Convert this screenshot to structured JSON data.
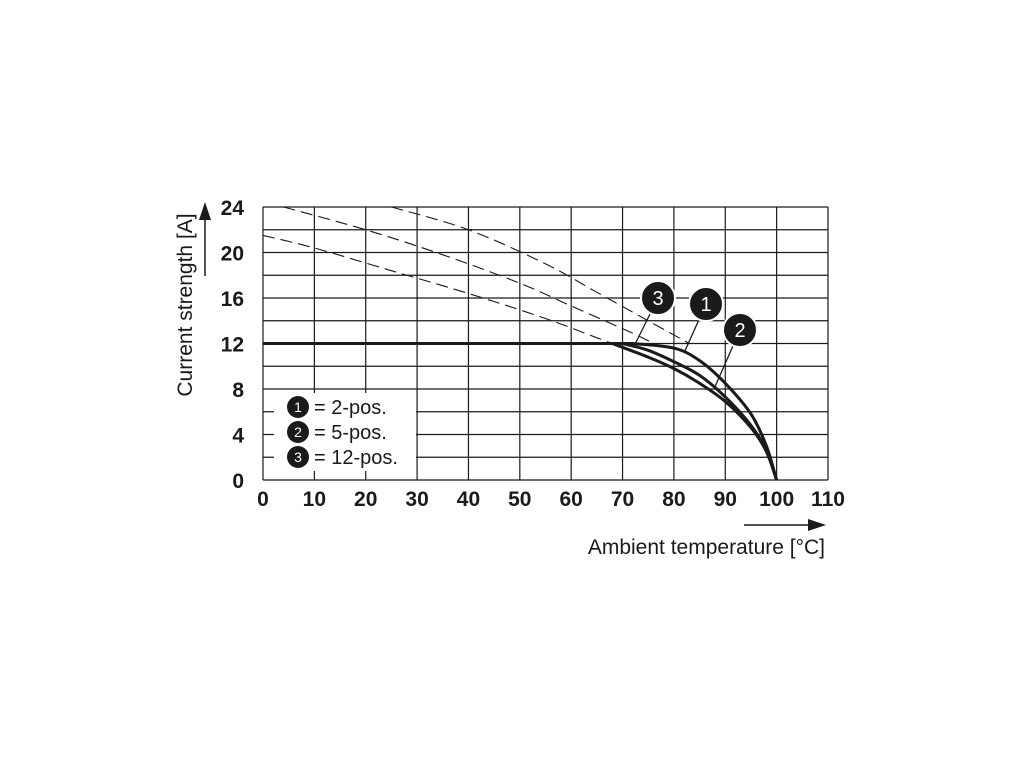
{
  "chart_data": {
    "type": "line",
    "xlabel": "Ambient temperature [°C]",
    "ylabel": "Current strength [A]",
    "xlim": [
      0,
      110
    ],
    "ylim": [
      0,
      24
    ],
    "x_ticks": [
      "0",
      "10",
      "20",
      "30",
      "40",
      "50",
      "60",
      "70",
      "80",
      "90",
      "100",
      "110"
    ],
    "y_ticks": [
      "0",
      "4",
      "8",
      "12",
      "16",
      "20",
      "24"
    ],
    "grid": true,
    "legend_position": "bottom-left",
    "legend": [
      {
        "marker": "1",
        "text": "= 2-pos."
      },
      {
        "marker": "2",
        "text": "= 5-pos."
      },
      {
        "marker": "3",
        "text": "= 12-pos."
      }
    ],
    "series": [
      {
        "marker": "1",
        "style": "solid",
        "points": [
          [
            0,
            12
          ],
          [
            72,
            12
          ],
          [
            80,
            11.6
          ],
          [
            85,
            10.5
          ],
          [
            90,
            8.5
          ],
          [
            95,
            5.8
          ],
          [
            98,
            3
          ],
          [
            100,
            0
          ]
        ]
      },
      {
        "marker": "2",
        "style": "solid",
        "points": [
          [
            0,
            12
          ],
          [
            70,
            12
          ],
          [
            75,
            11.4
          ],
          [
            80,
            10.4
          ],
          [
            85,
            9.2
          ],
          [
            90,
            7.3
          ],
          [
            95,
            4.8
          ],
          [
            98,
            2.6
          ],
          [
            100,
            0
          ]
        ]
      },
      {
        "marker": "3",
        "style": "solid",
        "points": [
          [
            0,
            12
          ],
          [
            68,
            12
          ],
          [
            75,
            10.8
          ],
          [
            80,
            9.8
          ],
          [
            85,
            8.5
          ],
          [
            90,
            6.9
          ],
          [
            95,
            4.6
          ],
          [
            98,
            2.5
          ],
          [
            100,
            0
          ]
        ]
      },
      {
        "marker": "1",
        "style": "dashed",
        "points": [
          [
            25,
            24
          ],
          [
            40,
            22
          ],
          [
            55,
            19
          ],
          [
            65,
            16.5
          ],
          [
            75,
            14
          ],
          [
            83,
            12
          ]
        ]
      },
      {
        "marker": "2",
        "style": "dashed",
        "points": [
          [
            4,
            24
          ],
          [
            20,
            22
          ],
          [
            35,
            19.8
          ],
          [
            50,
            17.3
          ],
          [
            60,
            15.3
          ],
          [
            72,
            12.9
          ],
          [
            76,
            12
          ]
        ]
      },
      {
        "marker": "3",
        "style": "dashed",
        "points": [
          [
            0,
            21.5
          ],
          [
            10,
            20.4
          ],
          [
            25,
            18.4
          ],
          [
            40,
            16.4
          ],
          [
            55,
            14.2
          ],
          [
            65,
            12.5
          ],
          [
            68,
            12
          ]
        ]
      }
    ],
    "callouts": [
      {
        "marker": "3",
        "x": 72.5,
        "y": 12
      },
      {
        "marker": "1",
        "x": 82,
        "y": 11.2
      },
      {
        "marker": "2",
        "x": 88,
        "y": 8.2
      }
    ]
  }
}
